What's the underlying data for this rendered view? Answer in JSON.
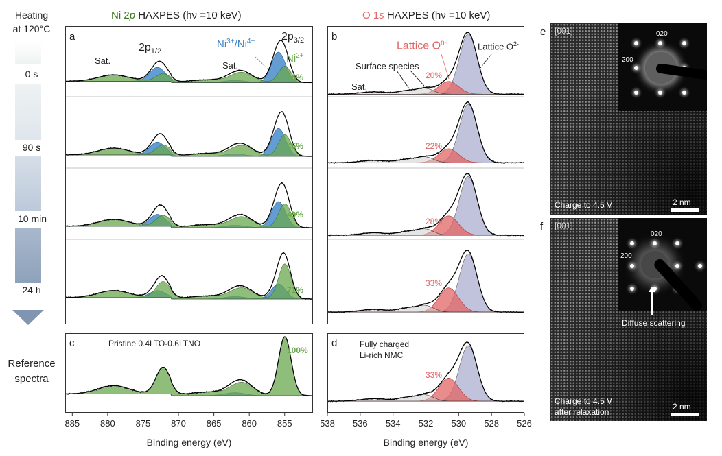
{
  "left_labels": {
    "heating_line1": "Heating",
    "heating_line2": "at 120",
    "heating_degC": "°C",
    "times": [
      "0 s",
      "90 s",
      "10 min",
      "24 h"
    ],
    "reference_line1": "Reference",
    "reference_line2": "spectra"
  },
  "panel_titles": {
    "ni_prefix": "Ni 2",
    "ni_italic": "p",
    "ni_suffix": " HAXPES (hν =10 keV)",
    "o_prefix": "O 1",
    "o_italic": "s",
    "o_suffix": " HAXPES (hν =10 keV)"
  },
  "panel_letters": {
    "a": "a",
    "b": "b",
    "c": "c",
    "d": "d",
    "e": "e",
    "f": "f"
  },
  "ni_annotations": {
    "sat1": "Sat.",
    "sat2": "Sat.",
    "p12": "2p",
    "p12_sub": "1/2",
    "p32": "2p",
    "p32_sub": "3/2",
    "ni34": "Ni",
    "ni34_sup1": "3+",
    "ni34_slash": "/Ni",
    "ni34_sup2": "4+",
    "ni2": "Ni",
    "ni2_sup": "2+",
    "pristine": "Pristine 0.4LTO-0.6LTNO"
  },
  "o_annotations": {
    "lattice_on": "Lattice O",
    "lattice_on_sup": "n-",
    "lattice_o2": "Lattice O",
    "lattice_o2_sup": "2-",
    "surface": "Surface species",
    "sat": "Sat.",
    "fully_line1": "Fully charged",
    "fully_line2": "Li-rich NMC"
  },
  "tem": {
    "e_zone": "[001]",
    "e_caption": "Charge to 4.5 V",
    "e_scale": "2 nm",
    "e_020": "020",
    "e_200": "200",
    "f_zone": "[001]",
    "f_caption1": "Charge to 4.5 V",
    "f_caption2": "after relaxation",
    "f_scale": "2 nm",
    "f_020": "020",
    "f_200": "200",
    "diffuse": "Diffuse scattering"
  },
  "colors": {
    "ni2": "#6aa84f",
    "ni34": "#3d85c6",
    "lattice_on": "#e06666",
    "lattice_o2": "#8e8fbf",
    "surface": "#cccccc",
    "ni_title": "#38761d",
    "o_title": "#e06666"
  },
  "chart_data": [
    {
      "panel": "a",
      "type": "area",
      "title": "Ni 2p HAXPES (hν =10 keV)",
      "xlabel": "Binding energy (eV)",
      "ylabel": "",
      "xlim": [
        886,
        851
      ],
      "x_reversed": true,
      "x_ticks": [
        885,
        880,
        875,
        870,
        865,
        860,
        855
      ],
      "series": [
        {
          "name": "Ni3+/Ni4+",
          "peak_eV": [
            855.7,
            872.9
          ]
        },
        {
          "name": "Ni2+",
          "peak_eV": [
            854.9,
            872.2
          ]
        },
        {
          "name": "Sat.",
          "peak_eV": [
            861.2,
            879.5
          ]
        }
      ],
      "spectra": [
        {
          "time": "0 s",
          "ni2_percent": 36
        },
        {
          "time": "90 s",
          "ni2_percent": 45
        },
        {
          "time": "10 min",
          "ni2_percent": 49
        },
        {
          "time": "24 h",
          "ni2_percent": 71
        }
      ]
    },
    {
      "panel": "c",
      "type": "area",
      "title": "Pristine 0.4LTO-0.6LTNO",
      "xlabel": "Binding energy (eV)",
      "xlim": [
        886,
        851
      ],
      "x_reversed": true,
      "x_ticks": [
        885,
        880,
        875,
        870,
        865,
        860,
        855
      ],
      "spectra": [
        {
          "ni2_percent": 100
        }
      ]
    },
    {
      "panel": "b",
      "type": "area",
      "title": "O 1s HAXPES (hν =10 keV)",
      "xlabel": "Binding energy (eV)",
      "xlim": [
        538,
        526
      ],
      "x_reversed": true,
      "x_ticks": [
        538,
        536,
        534,
        532,
        530,
        528,
        526
      ],
      "series": [
        {
          "name": "Lattice O2-",
          "peak_eV": 529.4
        },
        {
          "name": "Lattice On-",
          "peak_eV": 530.6
        },
        {
          "name": "Surface species",
          "peak_eV": [
            531.9,
            533.1
          ]
        },
        {
          "name": "Sat.",
          "peak_eV": 535.2
        }
      ],
      "spectra": [
        {
          "time": "0 s",
          "lattice_on_percent": 20
        },
        {
          "time": "90 s",
          "lattice_on_percent": 22
        },
        {
          "time": "10 min",
          "lattice_on_percent": 28
        },
        {
          "time": "24 h",
          "lattice_on_percent": 33
        }
      ]
    },
    {
      "panel": "d",
      "type": "area",
      "title": "Fully charged Li-rich NMC",
      "xlabel": "Binding energy (eV)",
      "xlim": [
        538,
        526
      ],
      "x_reversed": true,
      "x_ticks": [
        538,
        536,
        534,
        532,
        530,
        528,
        526
      ],
      "spectra": [
        {
          "lattice_on_percent": 33
        }
      ]
    }
  ]
}
